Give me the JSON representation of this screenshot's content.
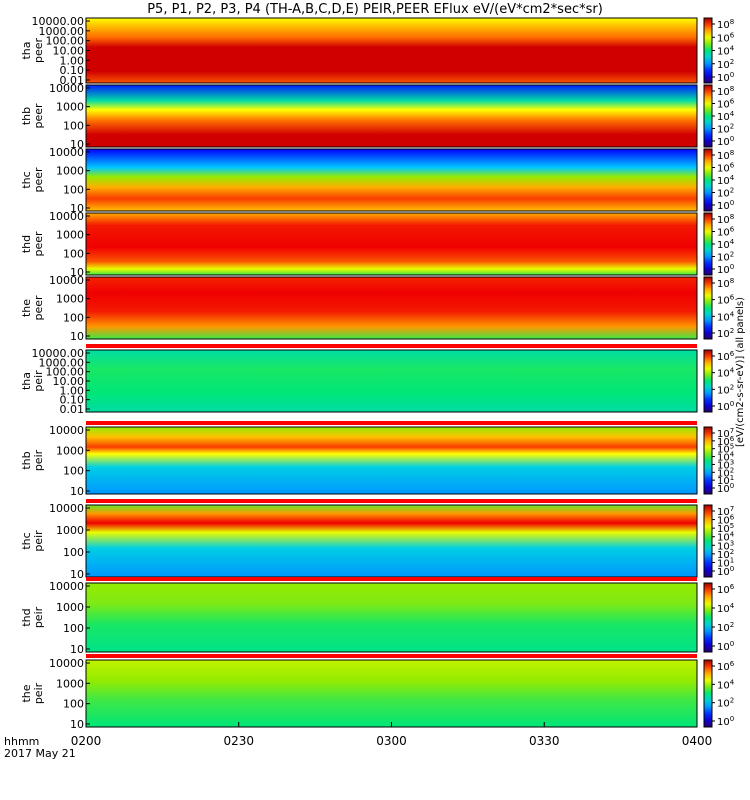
{
  "chart_data": {
    "type": "heatmap",
    "title": "P5, P1, P2, P3, P4 (TH-A,B,C,D,E) PEIR,PEER EFlux eV/(eV*cm2*sec*sr)",
    "x_axis": {
      "ticks": [
        "0200",
        "0230",
        "0300",
        "0330",
        "0400"
      ],
      "range": [
        "02:00",
        "04:00"
      ],
      "label_line1": "hhmm",
      "label_line2": "2017 May 21"
    },
    "colorbar_label": "[eV/(cm2-s-sr-eV)] (all panels)",
    "panels": [
      {
        "probe": "tha",
        "species": "peer",
        "yticks": [
          "10000.00",
          "1000.00",
          "100.00",
          "10.00",
          "1.00",
          "0.10",
          "0.01"
        ],
        "cbar_ticks": [
          "10^8",
          "10^6",
          "10^4",
          "10^2",
          "10^0"
        ],
        "has_top_flag": false
      },
      {
        "probe": "thb",
        "species": "peer",
        "yticks": [
          "10000",
          "1000",
          "100",
          "10"
        ],
        "cbar_ticks": [
          "10^8",
          "10^6",
          "10^4",
          "10^2",
          "10^0"
        ],
        "has_top_flag": false
      },
      {
        "probe": "thc",
        "species": "peer",
        "yticks": [
          "10000",
          "1000",
          "100",
          "10"
        ],
        "cbar_ticks": [
          "10^8",
          "10^6",
          "10^4",
          "10^2",
          "10^0"
        ],
        "has_top_flag": false
      },
      {
        "probe": "thd",
        "species": "peer",
        "yticks": [
          "10000",
          "1000",
          "100",
          "10"
        ],
        "cbar_ticks": [
          "10^8",
          "10^6",
          "10^4",
          "10^2",
          "10^0"
        ],
        "has_top_flag": false
      },
      {
        "probe": "the",
        "species": "peer",
        "yticks": [
          "10000",
          "1000",
          "100",
          "10"
        ],
        "cbar_ticks": [
          "10^8",
          "10^6",
          "10^4",
          "10^2"
        ],
        "has_top_flag": false
      },
      {
        "probe": "tha",
        "species": "peir",
        "yticks": [
          "10000.00",
          "1000.00",
          "100.00",
          "10.00",
          "1.00",
          "0.10",
          "0.01"
        ],
        "cbar_ticks": [
          "10^6",
          "10^4",
          "10^2",
          "10^0"
        ],
        "has_top_flag": true
      },
      {
        "probe": "thb",
        "species": "peir",
        "yticks": [
          "10000",
          "1000",
          "100",
          "10"
        ],
        "cbar_ticks": [
          "10^7",
          "10^6",
          "10^5",
          "10^4",
          "10^3",
          "10^2",
          "10^1",
          "10^0"
        ],
        "has_top_flag": true
      },
      {
        "probe": "thc",
        "species": "peir",
        "yticks": [
          "10000",
          "1000",
          "100",
          "10"
        ],
        "cbar_ticks": [
          "10^7",
          "10^6",
          "10^5",
          "10^4",
          "10^3",
          "10^2",
          "10^1",
          "10^0"
        ],
        "has_top_flag": true
      },
      {
        "probe": "thd",
        "species": "peir",
        "yticks": [
          "10000",
          "1000",
          "100",
          "10"
        ],
        "cbar_ticks": [
          "10^6",
          "10^4",
          "10^2",
          "10^0"
        ],
        "has_top_flag": true
      },
      {
        "probe": "the",
        "species": "peir",
        "yticks": [
          "10000",
          "1000",
          "100",
          "10"
        ],
        "cbar_ticks": [
          "10^6",
          "10^4",
          "10^2",
          "10^0"
        ],
        "has_top_flag": true
      }
    ]
  }
}
